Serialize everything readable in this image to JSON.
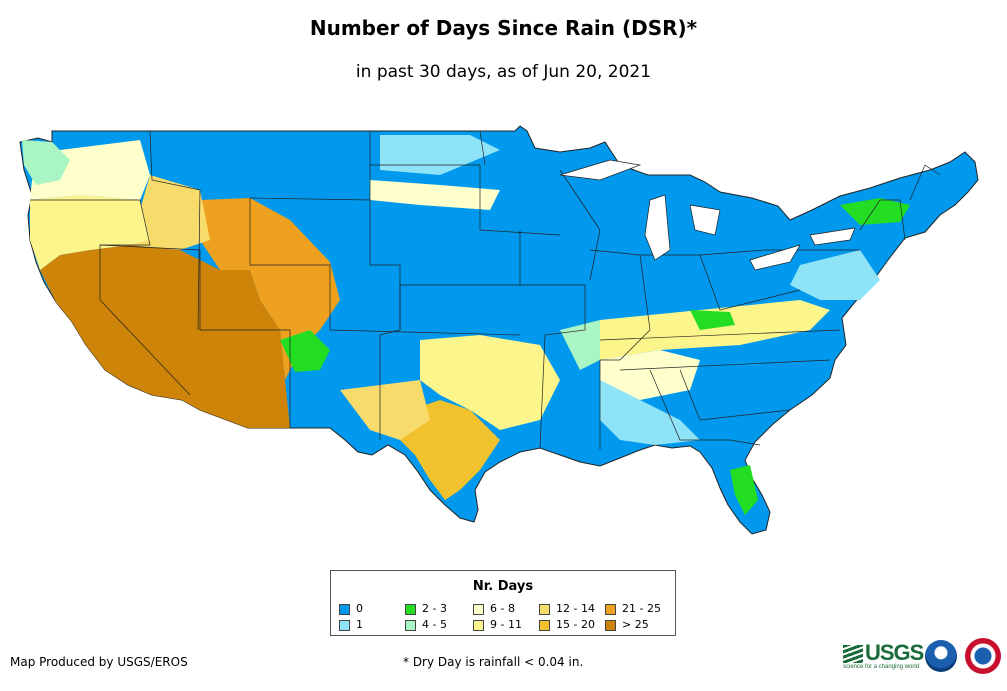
{
  "header": {
    "title": "Number of Days Since Rain (DSR)*",
    "subtitle": "in past 30 days, as of Jun 20, 2021"
  },
  "legend": {
    "title": "Nr. Days",
    "items": [
      {
        "label": "0",
        "color": "#0099ee"
      },
      {
        "label": "1",
        "color": "#8fe3f7"
      },
      {
        "label": "2 - 3",
        "color": "#22dd22"
      },
      {
        "label": "4 - 5",
        "color": "#aaf5c4"
      },
      {
        "label": "6 - 8",
        "color": "#ffffcc"
      },
      {
        "label": "9 - 11",
        "color": "#fcf58c"
      },
      {
        "label": "12 - 14",
        "color": "#f7dc6c"
      },
      {
        "label": "15 - 20",
        "color": "#f2c12e"
      },
      {
        "label": "21 - 25",
        "color": "#eea11e"
      },
      {
        "label": "> 25",
        "color": "#cd8408"
      }
    ]
  },
  "footer": {
    "credit": "Map Produced by USGS/EROS",
    "footnote": "* Dry Day is rainfall < 0.04 in.",
    "usgs_logo": "USGS",
    "usgs_tagline": "science for a changing world",
    "noaa_logo": "noaa-logo",
    "nws_logo": "nws-logo"
  }
}
